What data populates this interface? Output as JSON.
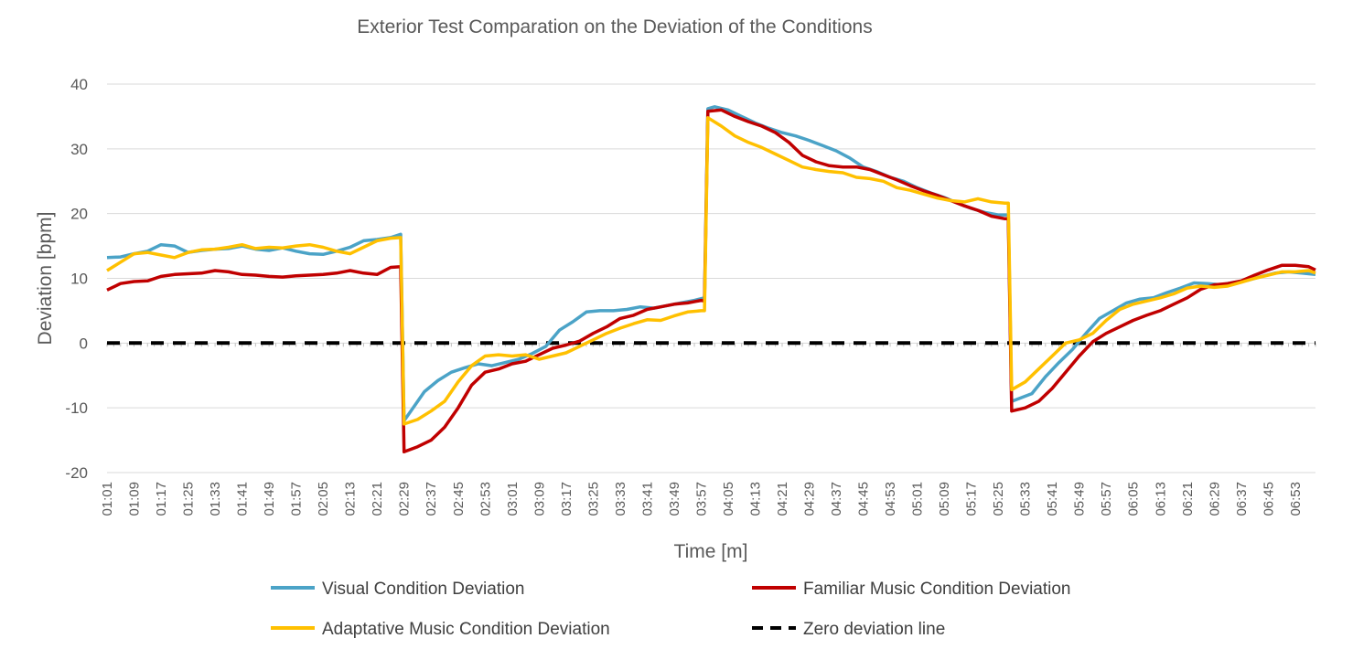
{
  "chart_data": {
    "type": "line",
    "title": "Exterior Test Comparation on the Deviation of the Conditions",
    "xlabel": "Time [m]",
    "ylabel": "Deviation [bpm]",
    "ylim": [
      -20,
      40
    ],
    "yticks": [
      "40",
      "30",
      "20",
      "10",
      "0",
      "-10",
      "-20"
    ],
    "x_tick_labels": [
      "01:01",
      "01:09",
      "01:17",
      "01:25",
      "01:33",
      "01:41",
      "01:49",
      "01:57",
      "02:05",
      "02:13",
      "02:21",
      "02:29",
      "02:37",
      "02:45",
      "02:53",
      "03:01",
      "03:09",
      "03:17",
      "03:25",
      "03:33",
      "03:41",
      "03:49",
      "03:57",
      "04:05",
      "04:13",
      "04:21",
      "04:29",
      "04:37",
      "04:45",
      "04:53",
      "05:01",
      "05:09",
      "05:17",
      "05:25",
      "05:33",
      "05:41",
      "05:49",
      "05:57",
      "06:05",
      "06:13",
      "06:21",
      "06:29",
      "06:37",
      "06:45",
      "06:53"
    ],
    "x_range_seconds": [
      61,
      419
    ],
    "grid": "horizontal",
    "legend_position": "bottom",
    "series": [
      {
        "name": "Visual Condition Deviation",
        "color": "#4BA3C7",
        "dash": "solid",
        "x": [
          "01:01",
          "01:05",
          "01:09",
          "01:13",
          "01:17",
          "01:21",
          "01:25",
          "01:29",
          "01:33",
          "01:37",
          "01:41",
          "01:45",
          "01:49",
          "01:53",
          "01:57",
          "02:01",
          "02:05",
          "02:09",
          "02:13",
          "02:17",
          "02:21",
          "02:25",
          "02:28",
          "02:29",
          "02:31",
          "02:35",
          "02:39",
          "02:43",
          "02:47",
          "02:51",
          "02:55",
          "02:59",
          "03:03",
          "03:07",
          "03:11",
          "03:15",
          "03:19",
          "03:23",
          "03:27",
          "03:31",
          "03:35",
          "03:39",
          "03:43",
          "03:47",
          "03:51",
          "03:55",
          "03:58",
          "03:59",
          "04:01",
          "04:05",
          "04:09",
          "04:13",
          "04:17",
          "04:21",
          "04:25",
          "04:29",
          "04:33",
          "04:37",
          "04:41",
          "04:45",
          "04:49",
          "04:53",
          "04:57",
          "05:01",
          "05:05",
          "05:09",
          "05:13",
          "05:17",
          "05:21",
          "05:25",
          "05:28",
          "05:29",
          "05:31",
          "05:35",
          "05:39",
          "05:43",
          "05:47",
          "05:51",
          "05:55",
          "05:59",
          "06:03",
          "06:07",
          "06:11",
          "06:15",
          "06:19",
          "06:23",
          "06:27",
          "06:31",
          "06:35",
          "06:39",
          "06:43",
          "06:47",
          "06:51",
          "06:55",
          "06:59"
        ],
        "y": [
          13.2,
          13.3,
          13.8,
          14.2,
          15.2,
          15.0,
          14.0,
          14.3,
          14.5,
          14.6,
          15.0,
          14.5,
          14.3,
          14.7,
          14.2,
          13.8,
          13.7,
          14.2,
          14.8,
          15.8,
          16.0,
          16.3,
          16.8,
          -12.0,
          -10.5,
          -7.5,
          -5.8,
          -4.5,
          -3.8,
          -3.2,
          -3.5,
          -3.0,
          -2.5,
          -1.6,
          -0.5,
          2.0,
          3.3,
          4.8,
          5.0,
          5.0,
          5.2,
          5.6,
          5.4,
          5.8,
          6.2,
          6.6,
          7.0,
          36.2,
          36.5,
          36.0,
          35.0,
          34.0,
          33.2,
          32.5,
          32.0,
          31.3,
          30.5,
          29.7,
          28.6,
          27.2,
          26.5,
          25.6,
          25.0,
          24.0,
          23.2,
          22.5,
          21.6,
          20.8,
          20.2,
          19.8,
          19.8,
          -9.0,
          -8.6,
          -7.8,
          -5.2,
          -3.0,
          -1.0,
          1.5,
          3.8,
          5.0,
          6.2,
          6.8,
          7.0,
          7.8,
          8.5,
          9.3,
          9.2,
          9.0,
          9.4,
          9.7,
          10.3,
          10.8,
          11.0,
          10.8,
          10.6
        ]
      },
      {
        "name": "Familiar Music Condition Deviation",
        "color": "#C00000",
        "dash": "solid",
        "x": [
          "01:01",
          "01:05",
          "01:09",
          "01:13",
          "01:17",
          "01:21",
          "01:25",
          "01:29",
          "01:33",
          "01:37",
          "01:41",
          "01:45",
          "01:49",
          "01:53",
          "01:57",
          "02:01",
          "02:05",
          "02:09",
          "02:13",
          "02:17",
          "02:21",
          "02:25",
          "02:28",
          "02:29",
          "02:33",
          "02:37",
          "02:41",
          "02:45",
          "02:49",
          "02:53",
          "02:57",
          "03:01",
          "03:05",
          "03:09",
          "03:13",
          "03:17",
          "03:21",
          "03:25",
          "03:29",
          "03:33",
          "03:37",
          "03:41",
          "03:45",
          "03:49",
          "03:53",
          "03:57",
          "03:58",
          "03:59",
          "04:03",
          "04:07",
          "04:11",
          "04:15",
          "04:19",
          "04:23",
          "04:27",
          "04:31",
          "04:35",
          "04:39",
          "04:43",
          "04:47",
          "04:51",
          "04:55",
          "04:59",
          "05:03",
          "05:07",
          "05:11",
          "05:15",
          "05:19",
          "05:23",
          "05:27",
          "05:28",
          "05:29",
          "05:33",
          "05:37",
          "05:41",
          "05:45",
          "05:49",
          "05:53",
          "05:57",
          "06:01",
          "06:05",
          "06:09",
          "06:13",
          "06:17",
          "06:21",
          "06:25",
          "06:29",
          "06:33",
          "06:37",
          "06:41",
          "06:45",
          "06:49",
          "06:53",
          "06:57",
          "06:59"
        ],
        "y": [
          8.2,
          9.2,
          9.5,
          9.6,
          10.3,
          10.6,
          10.7,
          10.8,
          11.2,
          11.0,
          10.6,
          10.5,
          10.3,
          10.2,
          10.4,
          10.5,
          10.6,
          10.8,
          11.2,
          10.8,
          10.6,
          11.7,
          11.8,
          -16.8,
          -16.0,
          -15.0,
          -13.0,
          -10.0,
          -6.5,
          -4.5,
          -4.0,
          -3.2,
          -2.8,
          -1.8,
          -0.8,
          -0.3,
          0.3,
          1.5,
          2.5,
          3.8,
          4.3,
          5.2,
          5.6,
          6.0,
          6.2,
          6.6,
          6.5,
          35.8,
          36.0,
          35.0,
          34.2,
          33.5,
          32.5,
          31.0,
          29.0,
          28.0,
          27.4,
          27.2,
          27.2,
          26.8,
          26.0,
          25.2,
          24.3,
          23.5,
          22.8,
          22.0,
          21.2,
          20.5,
          19.6,
          19.2,
          19.2,
          -10.5,
          -10.0,
          -9.0,
          -7.0,
          -4.5,
          -2.0,
          0.2,
          1.5,
          2.5,
          3.5,
          4.3,
          5.0,
          6.0,
          7.0,
          8.3,
          9.0,
          9.2,
          9.6,
          10.5,
          11.3,
          12.0,
          12.0,
          11.8,
          11.3
        ]
      },
      {
        "name": "Adaptative Music Condition Deviation",
        "color": "#FFC000",
        "dash": "solid",
        "x": [
          "01:01",
          "01:05",
          "01:09",
          "01:13",
          "01:17",
          "01:21",
          "01:25",
          "01:29",
          "01:33",
          "01:37",
          "01:41",
          "01:45",
          "01:49",
          "01:53",
          "01:57",
          "02:01",
          "02:05",
          "02:09",
          "02:13",
          "02:17",
          "02:21",
          "02:25",
          "02:28",
          "02:29",
          "02:33",
          "02:37",
          "02:41",
          "02:45",
          "02:49",
          "02:53",
          "02:57",
          "03:01",
          "03:05",
          "03:09",
          "03:13",
          "03:17",
          "03:21",
          "03:25",
          "03:29",
          "03:33",
          "03:37",
          "03:41",
          "03:45",
          "03:49",
          "03:53",
          "03:57",
          "03:58",
          "03:59",
          "04:03",
          "04:07",
          "04:11",
          "04:15",
          "04:19",
          "04:23",
          "04:27",
          "04:31",
          "04:35",
          "04:39",
          "04:43",
          "04:47",
          "04:51",
          "04:55",
          "04:59",
          "05:03",
          "05:07",
          "05:11",
          "05:15",
          "05:19",
          "05:23",
          "05:27",
          "05:28",
          "05:29",
          "05:33",
          "05:37",
          "05:41",
          "05:45",
          "05:49",
          "05:53",
          "05:57",
          "06:01",
          "06:05",
          "06:09",
          "06:13",
          "06:17",
          "06:21",
          "06:25",
          "06:29",
          "06:33",
          "06:37",
          "06:41",
          "06:45",
          "06:49",
          "06:53",
          "06:57",
          "06:59"
        ],
        "y": [
          11.2,
          12.5,
          13.8,
          14.0,
          13.6,
          13.2,
          14.0,
          14.4,
          14.5,
          14.8,
          15.2,
          14.6,
          14.8,
          14.7,
          15.0,
          15.2,
          14.8,
          14.2,
          13.8,
          14.8,
          15.8,
          16.2,
          16.3,
          -12.5,
          -11.8,
          -10.5,
          -9.0,
          -6.0,
          -3.5,
          -2.0,
          -1.8,
          -2.0,
          -1.8,
          -2.5,
          -2.0,
          -1.5,
          -0.5,
          0.5,
          1.5,
          2.3,
          3.0,
          3.6,
          3.5,
          4.2,
          4.8,
          5.0,
          5.0,
          34.8,
          33.5,
          32.0,
          31.0,
          30.2,
          29.2,
          28.2,
          27.2,
          26.8,
          26.5,
          26.3,
          25.6,
          25.4,
          25.0,
          24.0,
          23.6,
          23.0,
          22.4,
          22.0,
          21.8,
          22.3,
          21.8,
          21.6,
          21.6,
          -7.2,
          -6.0,
          -4.0,
          -2.0,
          0.0,
          0.5,
          1.5,
          3.5,
          5.2,
          6.0,
          6.5,
          7.0,
          7.6,
          8.5,
          8.8,
          8.6,
          8.8,
          9.4,
          10.0,
          10.5,
          11.0,
          11.0,
          11.2,
          10.8
        ]
      },
      {
        "name": "Zero deviation line",
        "color": "#000000",
        "dash": "dashed",
        "x": [
          "01:01",
          "06:59"
        ],
        "y": [
          0,
          0
        ]
      }
    ]
  }
}
